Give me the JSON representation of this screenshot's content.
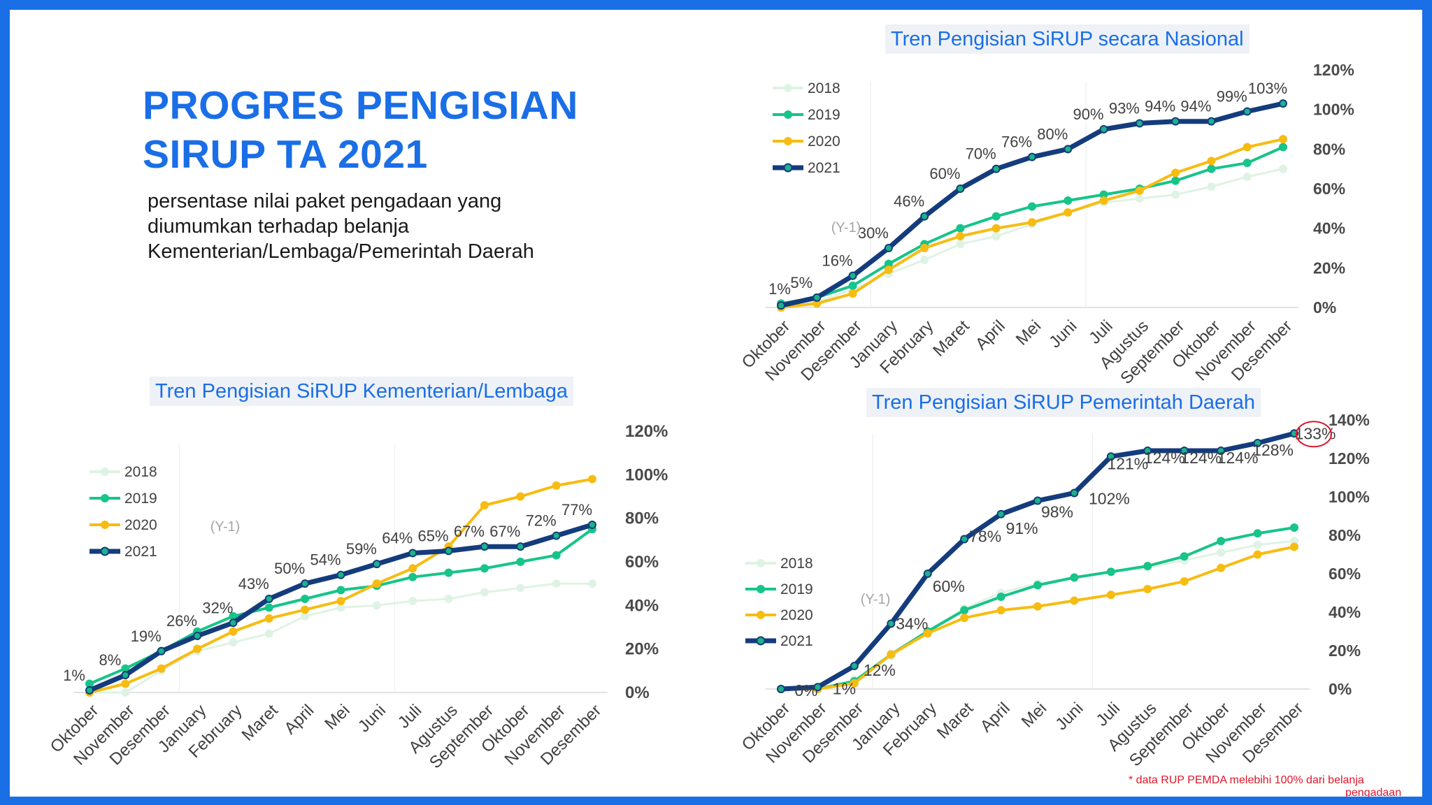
{
  "title_lines": [
    "PROGRES PENGISIAN",
    "SIRUP TA 2021"
  ],
  "subtitle": "persentase nilai paket pengadaan yang diumumkan terhadap belanja Kementerian/Lembaga/Pemerintah Daerah",
  "footnote": "* data RUP PEMDA melebihi 100% dari belanja",
  "footnote_cut": "pengadaan",
  "colors": {
    "accent": "#1a6ee6",
    "s2018": "#dff3e4",
    "s2019": "#17c489",
    "s2020": "#f7bc12",
    "s2021": "#143c7d",
    "y1_label": "#a5a5a5",
    "highlight_circle": "#e0162b"
  },
  "chart_data": [
    {
      "id": "nasional",
      "type": "line",
      "title": "Tren Pengisian SiRUP secara Nasional",
      "categories": [
        "Oktober",
        "November",
        "Desember",
        "January",
        "February",
        "Maret",
        "April",
        "Mei",
        "Juni",
        "Juli",
        "Agustus",
        "September",
        "Oktober",
        "November",
        "Desember"
      ],
      "y_ticks": [
        "0%",
        "20%",
        "40%",
        "60%",
        "80%",
        "100%",
        "120%"
      ],
      "ylim": [
        0,
        120
      ],
      "y_axis_side": "right",
      "legend_position": "top-left",
      "annotation": "(Y-1)",
      "series": [
        {
          "name": "2018",
          "key": "s2018",
          "values": [
            0,
            3,
            9,
            17,
            24,
            32,
            36,
            42,
            48,
            53,
            55,
            57,
            61,
            66,
            70
          ]
        },
        {
          "name": "2019",
          "key": "s2019",
          "values": [
            2,
            5,
            11,
            22,
            32,
            40,
            46,
            51,
            54,
            57,
            60,
            64,
            70,
            73,
            81
          ]
        },
        {
          "name": "2020",
          "key": "s2020",
          "values": [
            0,
            2,
            7,
            19,
            30,
            36,
            40,
            43,
            48,
            54,
            59,
            68,
            74,
            81,
            85
          ]
        },
        {
          "name": "2021",
          "key": "s2021",
          "values": [
            1,
            5,
            16,
            30,
            46,
            60,
            70,
            76,
            80,
            90,
            93,
            94,
            94,
            99,
            103
          ],
          "labels": [
            "1%",
            "5%",
            "16%",
            "30%",
            "46%",
            "60%",
            "70%",
            "76%",
            "80%",
            "90%",
            "93%",
            "94%",
            "94%",
            "99%",
            "103%"
          ]
        }
      ]
    },
    {
      "id": "kl",
      "type": "line",
      "title": "Tren Pengisian SiRUP  Kementerian/Lembaga",
      "categories": [
        "Oktober",
        "November",
        "Desember",
        "January",
        "February",
        "Maret",
        "April",
        "Mei",
        "Juni",
        "Juli",
        "Agustus",
        "September",
        "Oktober",
        "November",
        "Desember"
      ],
      "y_ticks": [
        "0%",
        "20%",
        "40%",
        "60%",
        "80%",
        "100%",
        "120%"
      ],
      "ylim": [
        0,
        120
      ],
      "y_axis_side": "right",
      "legend_position": "top-left",
      "annotation": "(Y-1)",
      "series": [
        {
          "name": "2018",
          "key": "s2018",
          "values": [
            0,
            0,
            10,
            19,
            23,
            27,
            35,
            39,
            40,
            42,
            43,
            46,
            48,
            50,
            50
          ]
        },
        {
          "name": "2019",
          "key": "s2019",
          "values": [
            4,
            11,
            19,
            28,
            35,
            39,
            43,
            47,
            49,
            53,
            55,
            57,
            60,
            63,
            75
          ]
        },
        {
          "name": "2020",
          "key": "s2020",
          "values": [
            0,
            4,
            11,
            20,
            28,
            34,
            38,
            42,
            50,
            57,
            67,
            86,
            90,
            95,
            98
          ]
        },
        {
          "name": "2021",
          "key": "s2021",
          "values": [
            1,
            8,
            19,
            26,
            32,
            43,
            50,
            54,
            59,
            64,
            65,
            67,
            67,
            72,
            77
          ],
          "labels": [
            "1%",
            "8%",
            "19%",
            "26%",
            "32%",
            "43%",
            "50%",
            "54%",
            "59%",
            "64%",
            "65%",
            "67%",
            "67%",
            "72%",
            "77%"
          ]
        }
      ]
    },
    {
      "id": "pemda",
      "type": "line",
      "title": "Tren Pengisian SiRUP  Pemerintah Daerah",
      "categories": [
        "Oktober",
        "November",
        "Desember",
        "January",
        "February",
        "Maret",
        "April",
        "Mei",
        "Juni",
        "Juli",
        "Agustus",
        "September",
        "Oktober",
        "November",
        "Desember"
      ],
      "y_ticks": [
        "0%",
        "20%",
        "40%",
        "60%",
        "80%",
        "100%",
        "120%",
        "140%"
      ],
      "ylim": [
        0,
        140
      ],
      "y_axis_side": "right",
      "legend_position": "top-left",
      "annotation": "(Y-1)",
      "series": [
        {
          "name": "2018",
          "key": "s2018",
          "values": [
            0,
            0,
            5,
            17,
            30,
            42,
            50,
            55,
            58,
            61,
            63,
            67,
            71,
            75,
            77
          ]
        },
        {
          "name": "2019",
          "key": "s2019",
          "values": [
            0,
            0,
            4,
            18,
            30,
            41,
            48,
            54,
            58,
            61,
            64,
            69,
            77,
            81,
            84
          ]
        },
        {
          "name": "2020",
          "key": "s2020",
          "values": [
            0,
            0,
            3,
            18,
            29,
            37,
            41,
            43,
            46,
            49,
            52,
            56,
            63,
            70,
            74
          ]
        },
        {
          "name": "2021",
          "key": "s2021",
          "values": [
            0,
            1,
            12,
            34,
            60,
            78,
            91,
            98,
            102,
            121,
            124,
            124,
            124,
            128,
            133
          ],
          "labels": [
            "0%",
            "1%",
            "12%",
            "34%",
            "60%",
            "78%",
            "91%",
            "98%",
            "102%",
            "121%",
            "124%",
            "124%",
            "124%",
            "128%",
            "133%"
          ]
        }
      ]
    }
  ]
}
